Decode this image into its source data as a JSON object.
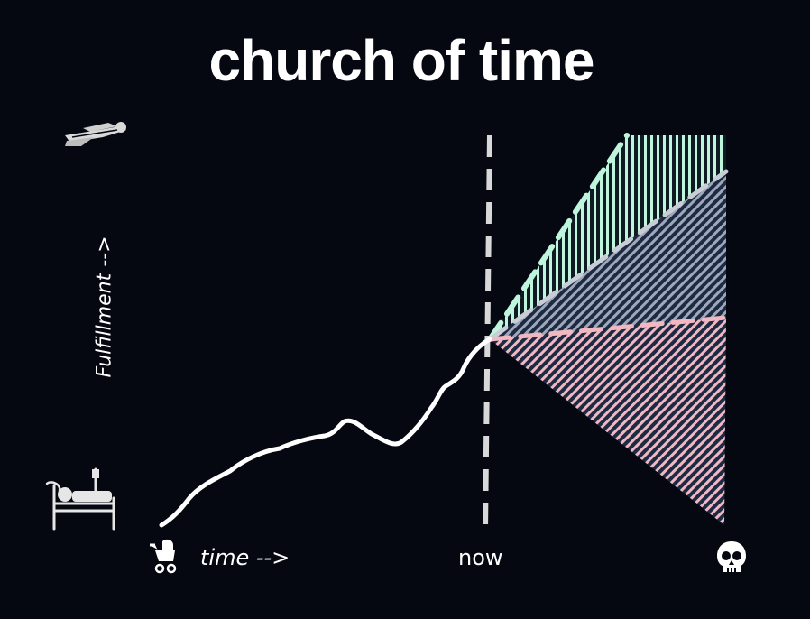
{
  "title": "church of time",
  "y_axis_label": "Fulfillment -->",
  "x_axis_label": "time -->",
  "now_label": "now",
  "icons": {
    "top_left": "flying-person-icon",
    "bottom_left": "hospital-bed-icon",
    "start": "baby-stroller-icon",
    "end": "skull-icon"
  },
  "colors": {
    "background": "#050811",
    "line": "#ffffff",
    "divider": "#d8d8d8",
    "upper_cone": "#bff5dc",
    "middle_cone": "#9fa8b8",
    "lower_cone": "#f2b8c2"
  }
}
